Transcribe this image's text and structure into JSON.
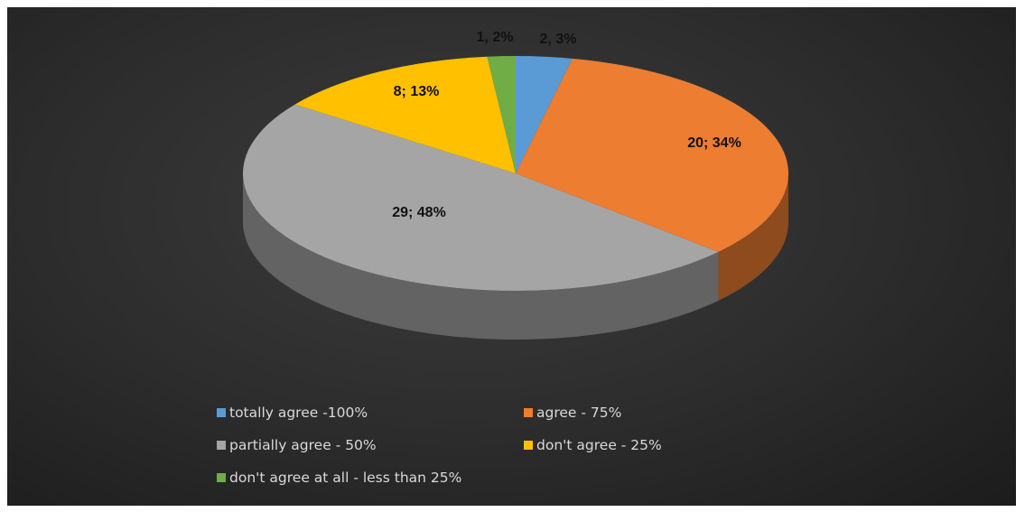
{
  "chart_data": {
    "type": "pie",
    "style": "3d",
    "title": "",
    "slices": [
      {
        "label": "totally agree -100%",
        "value": 2,
        "percent": 3,
        "data_label": "2, 3%",
        "color": "#5B9BD5"
      },
      {
        "label": "agree - 75%",
        "value": 20,
        "percent": 34,
        "data_label": "20; 34%",
        "color": "#ED7D31"
      },
      {
        "label": "partially agree - 50%",
        "value": 29,
        "percent": 48,
        "data_label": "29; 48%",
        "color": "#A5A5A5"
      },
      {
        "label": "don't agree - 25%",
        "value": 8,
        "percent": 13,
        "data_label": "8; 13%",
        "color": "#FFC000"
      },
      {
        "label": "don't agree at all - less than 25%",
        "value": 1,
        "percent": 2,
        "data_label": "1, 2%",
        "color": "#70AD47"
      }
    ],
    "legend_position": "bottom",
    "background_color": "#2b2b2b",
    "legend_text_color": "#d9d9d9"
  }
}
